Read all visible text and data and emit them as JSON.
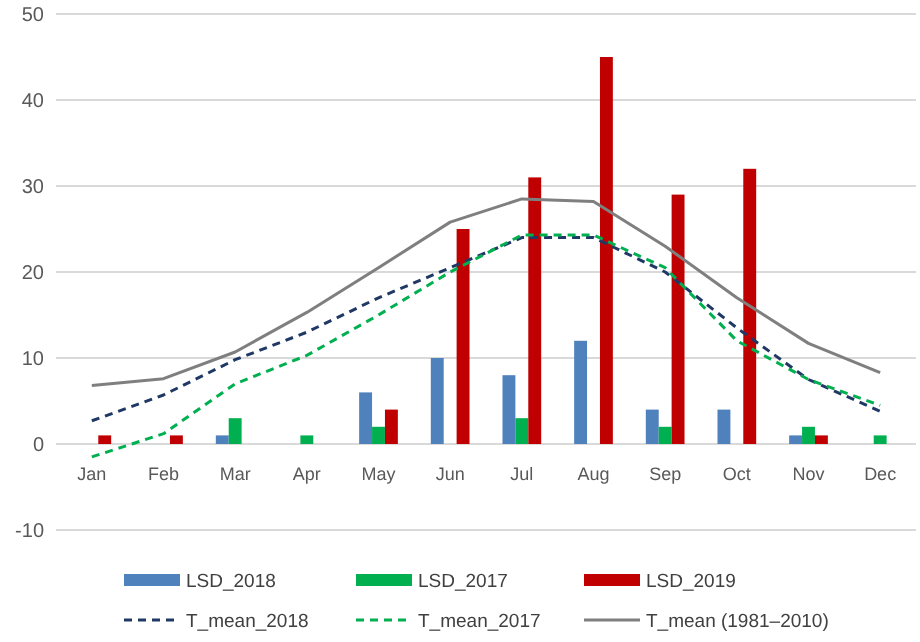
{
  "chart_data": {
    "type": "bar",
    "categories": [
      "Jan",
      "Feb",
      "Mar",
      "Apr",
      "May",
      "Jun",
      "Jul",
      "Aug",
      "Sep",
      "Oct",
      "Nov",
      "Dec"
    ],
    "series": [
      {
        "name": "LSD_2018",
        "color": "#4f81bd",
        "values": [
          0,
          0,
          1,
          0,
          6,
          10,
          8,
          12,
          4,
          4,
          1,
          0
        ]
      },
      {
        "name": "LSD_2017",
        "color": "#00b050",
        "values": [
          0,
          0,
          3,
          1,
          2,
          0,
          3,
          0,
          2,
          0,
          2,
          1
        ]
      },
      {
        "name": "LSD_2019",
        "color": "#c00000",
        "values": [
          1,
          1,
          0,
          0,
          4,
          25,
          31,
          45,
          29,
          32,
          1,
          0
        ]
      },
      {
        "name": "T_mean_2018",
        "type": "line",
        "line_style": "dashed",
        "color": "#1f3864",
        "values": [
          2.7,
          5.7,
          9.8,
          13,
          17,
          20.5,
          24,
          24,
          20,
          13.5,
          7.5,
          3.8
        ]
      },
      {
        "name": "T_mean_2017",
        "type": "line",
        "line_style": "dashed",
        "color": "#00b050",
        "values": [
          -1.5,
          1.2,
          7,
          10.3,
          15,
          20,
          24.3,
          24.3,
          20.5,
          12,
          7.5,
          4.5
        ]
      },
      {
        "name": "T_mean (1981–2010)",
        "type": "line",
        "line_style": "solid",
        "color": "#7f7f7f",
        "values": [
          6.8,
          7.6,
          10.7,
          15.3,
          20.5,
          25.8,
          28.5,
          28.2,
          23,
          17,
          11.7,
          8.3
        ]
      }
    ],
    "ylim": [
      -10,
      50
    ],
    "yticks": [
      -10,
      0,
      10,
      20,
      30,
      40,
      50
    ],
    "grid": "y",
    "legend": "bottom",
    "marker": "none"
  }
}
